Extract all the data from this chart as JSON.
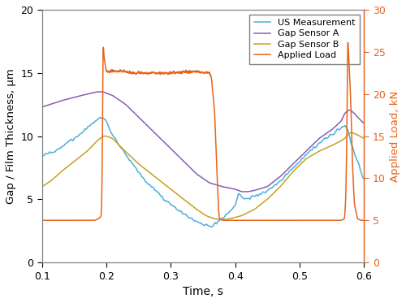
{
  "title": "",
  "xlabel": "Time, s",
  "ylabel_left": "Gap / Film Thickness, μm",
  "ylabel_right": "Applied Load, kN",
  "xlim": [
    0.1,
    0.6
  ],
  "ylim_left": [
    0,
    20
  ],
  "ylim_right": [
    0,
    30
  ],
  "xticks": [
    0.1,
    0.2,
    0.3,
    0.4,
    0.5,
    0.6
  ],
  "yticks_left": [
    0,
    5,
    10,
    15,
    20
  ],
  "yticks_right": [
    0,
    5,
    10,
    15,
    20,
    25,
    30
  ],
  "colors": {
    "us": "#4DAEDC",
    "gap_a": "#8B5DB5",
    "gap_b": "#C8A020",
    "load": "#E8631A"
  },
  "legend_labels": [
    "US Measurement",
    "Gap Sensor A",
    "Gap Sensor B",
    "Applied Load"
  ],
  "figsize": [
    5.0,
    3.73
  ],
  "dpi": 100
}
